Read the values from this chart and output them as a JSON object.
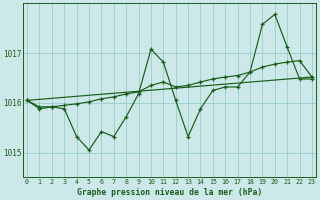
{
  "title": "Graphe pression niveau de la mer (hPa)",
  "background_color": "#cce8e8",
  "grid_color": "#99cccc",
  "line_color": "#1a5c1a",
  "x_labels": [
    "0",
    "1",
    "2",
    "3",
    "4",
    "5",
    "6",
    "7",
    "8",
    "9",
    "10",
    "11",
    "12",
    "13",
    "14",
    "15",
    "16",
    "17",
    "18",
    "19",
    "20",
    "21",
    "22",
    "23"
  ],
  "y_ticks": [
    1015,
    1016,
    1017
  ],
  "ylim": [
    1014.5,
    1018.0
  ],
  "xlim": [
    -0.3,
    23.3
  ],
  "series_volatile": [
    1016.05,
    1015.88,
    1015.92,
    1015.88,
    1015.32,
    1015.05,
    1015.42,
    1015.32,
    1015.72,
    1016.18,
    1017.08,
    1016.82,
    1016.05,
    1015.32,
    1015.88,
    1016.25,
    1016.32,
    1016.32,
    1016.62,
    1017.58,
    1017.78,
    1017.12,
    1016.48,
    1016.48
  ],
  "series_smooth": [
    1016.05,
    1015.92,
    1015.92,
    1015.95,
    1015.98,
    1016.02,
    1016.08,
    1016.12,
    1016.18,
    1016.22,
    1016.35,
    1016.42,
    1016.32,
    1016.35,
    1016.42,
    1016.48,
    1016.52,
    1016.55,
    1016.62,
    1016.72,
    1016.78,
    1016.82,
    1016.85,
    1016.52
  ]
}
